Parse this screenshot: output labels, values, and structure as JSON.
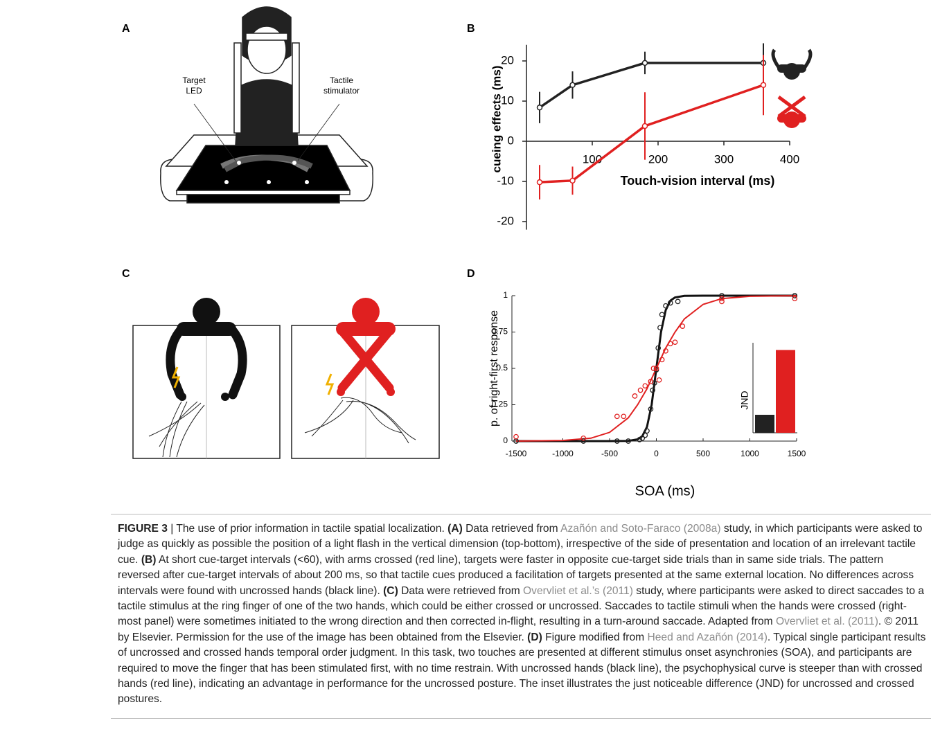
{
  "panel_labels": [
    "A",
    "B",
    "C",
    "D"
  ],
  "illustration_a": {
    "target_led": [
      "Target",
      "LED"
    ],
    "tactile_stimulator": [
      "Tactile",
      "stimulator"
    ]
  },
  "chart_data": [
    {
      "type": "line",
      "xlabel": "Touch-vision interval (ms)",
      "ylabel": "cueing effects (ms)",
      "xlim": [
        0,
        400
      ],
      "xticks": [
        100,
        200,
        300,
        400
      ],
      "ylim": [
        -22,
        24
      ],
      "yticks": [
        20,
        10,
        0,
        -10,
        -20
      ],
      "series": [
        {
          "color": "#222222",
          "x": [
            20,
            70,
            180,
            360
          ],
          "values": [
            8.4,
            14,
            19.5,
            19.5
          ],
          "errors": [
            3.9,
            3.4,
            2.8,
            4.9
          ]
        },
        {
          "color": "#e02020",
          "x": [
            20,
            70,
            180,
            360
          ],
          "values": [
            -10.2,
            -9.8,
            3.8,
            14
          ],
          "errors": [
            4.3,
            3.5,
            8.4,
            7.5
          ]
        }
      ]
    },
    {
      "type": "scatter",
      "xlabel": "SOA (ms)",
      "ylabel": "p. of right-first response",
      "xlim": [
        -1500,
        1500
      ],
      "xticks": [
        -1500,
        -1000,
        -500,
        0,
        500,
        1000,
        1500
      ],
      "ylim": [
        0,
        1
      ],
      "yticks": [
        0,
        0.25,
        0.5,
        0.75,
        1
      ],
      "series": [
        {
          "color": "#222222",
          "x": [
            -1500,
            -780,
            -420,
            -300,
            -180,
            -150,
            -120,
            -100,
            -60,
            -40,
            -20,
            0,
            20,
            40,
            60,
            100,
            150,
            230,
            700,
            1480
          ],
          "values": [
            0,
            0,
            0,
            0,
            0.01,
            0.02,
            0.04,
            0.07,
            0.22,
            0.35,
            0.4,
            0.49,
            0.64,
            0.78,
            0.87,
            0.93,
            0.95,
            0.96,
            1,
            1
          ]
        },
        {
          "color": "#e02020",
          "x": [
            -1500,
            -780,
            -420,
            -350,
            -230,
            -170,
            -120,
            -60,
            -30,
            0,
            30,
            60,
            100,
            150,
            200,
            280,
            700,
            700,
            1480
          ],
          "values": [
            0.03,
            0.02,
            0.17,
            0.17,
            0.31,
            0.35,
            0.38,
            0.41,
            0.5,
            0.5,
            0.42,
            0.56,
            0.62,
            0.67,
            0.68,
            0.79,
            0.98,
            0.96,
            0.98
          ]
        }
      ],
      "fits": [
        {
          "color": "#111111",
          "x": [
            -1500,
            -500,
            -300,
            -200,
            -150,
            -100,
            -50,
            0,
            50,
            100,
            150,
            200,
            300,
            500,
            1500
          ],
          "values": [
            0,
            0,
            0.001,
            0.012,
            0.034,
            0.098,
            0.25,
            0.5,
            0.75,
            0.9,
            0.966,
            0.988,
            0.999,
            1,
            1
          ]
        },
        {
          "color": "#e02020",
          "x": [
            -1500,
            -1000,
            -700,
            -500,
            -300,
            -200,
            -100,
            0,
            100,
            200,
            300,
            500,
            700,
            1000,
            1500
          ],
          "values": [
            0.0002,
            0.004,
            0.02,
            0.06,
            0.16,
            0.25,
            0.36,
            0.5,
            0.64,
            0.75,
            0.84,
            0.94,
            0.98,
            0.996,
            1
          ]
        }
      ],
      "inset": {
        "label": "JND",
        "values": [
          0.2,
          0.92
        ],
        "colors": [
          "#222222",
          "#e02020"
        ]
      }
    }
  ],
  "caption": {
    "segments": [
      {
        "text": "FIGURE 3",
        "style": "bold"
      },
      {
        "text": " | The use of prior information in tactile spatial localization. ",
        "style": "normal"
      },
      {
        "text": "(A)",
        "style": "bold"
      },
      {
        "text": " Data retrieved from ",
        "style": "normal"
      },
      {
        "text": "Azañón and Soto-Faraco (2008a)",
        "style": "link"
      },
      {
        "text": " study, in which participants were asked to judge as quickly as possible the position of a light flash in the vertical dimension (top-bottom), irrespective of the side of presentation and location of an irrelevant tactile cue. ",
        "style": "normal"
      },
      {
        "text": "(B)",
        "style": "bold"
      },
      {
        "text": " At short cue-target intervals (<60), with arms crossed (red line), targets were faster in opposite cue-target side trials than in same side trials. The pattern reversed after cue-target intervals of about 200 ms, so that tactile cues produced a facilitation of targets presented at the same external location. No differences across intervals were found with uncrossed hands (black line). ",
        "style": "normal"
      },
      {
        "text": "(C)",
        "style": "bold"
      },
      {
        "text": " Data were retrieved from ",
        "style": "normal"
      },
      {
        "text": "Overvliet et al.’s (2011)",
        "style": "link"
      },
      {
        "text": " study, where participants were asked to direct saccades to a tactile stimulus at the ring finger of one of the two hands, which could be either crossed or uncrossed. Saccades to tactile stimuli when the hands were crossed (right-most panel) were sometimes initiated to the wrong direction and then corrected in-flight, resulting in a turn-around saccade. Adapted from ",
        "style": "normal"
      },
      {
        "text": "Overvliet et al. (2011)",
        "style": "link"
      },
      {
        "text": ". © 2011 by Elsevier. Permission for the use of the image has been obtained from the Elsevier. ",
        "style": "normal"
      },
      {
        "text": "(D)",
        "style": "bold"
      },
      {
        "text": " Figure modified from ",
        "style": "normal"
      },
      {
        "text": "Heed and Azañón (2014)",
        "style": "link"
      },
      {
        "text": ". Typical single participant results of uncrossed and crossed hands temporal order judgment. In this task, two touches are presented at different stimulus onset asynchronies (SOA), and participants are required to move the finger that has been stimulated first, with no time restrain. With uncrossed hands (black line), the psychophysical curve is steeper than with crossed hands (red line), indicating an advantage in performance for the uncrossed posture. The inset illustrates the just noticeable difference (JND) for uncrossed and crossed postures.",
        "style": "normal"
      }
    ]
  }
}
